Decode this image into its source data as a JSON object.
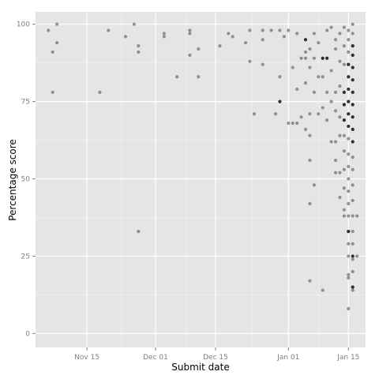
{
  "chart_data": {
    "type": "scatter",
    "xlabel": "Submit date",
    "ylabel": "Percentage score",
    "xlim": [
      "2013-11-03",
      "2014-01-19"
    ],
    "ylim": [
      -4.5,
      104
    ],
    "x_ticks": [
      {
        "value": "2013-11-15",
        "label": "Nov 15"
      },
      {
        "value": "2013-12-01",
        "label": "Dec 01"
      },
      {
        "value": "2013-12-15",
        "label": "Dec 15"
      },
      {
        "value": "2014-01-01",
        "label": "Jan 01"
      },
      {
        "value": "2014-01-15",
        "label": "Jan 15"
      }
    ],
    "y_ticks": [
      0,
      25,
      50,
      75,
      100
    ],
    "grid": true,
    "point_color": "#808080",
    "dark_point_color": "#1a1a1a",
    "panel_background": "#e5e5e5",
    "grid_color": "#ffffff",
    "points": [
      {
        "x": "2013-11-06",
        "y": 98
      },
      {
        "x": "2013-11-07",
        "y": 91
      },
      {
        "x": "2013-11-07",
        "y": 78
      },
      {
        "x": "2013-11-08",
        "y": 100
      },
      {
        "x": "2013-11-08",
        "y": 94
      },
      {
        "x": "2013-11-18",
        "y": 78
      },
      {
        "x": "2013-11-20",
        "y": 98
      },
      {
        "x": "2013-11-24",
        "y": 96
      },
      {
        "x": "2013-11-26",
        "y": 100
      },
      {
        "x": "2013-11-27",
        "y": 93
      },
      {
        "x": "2013-11-27",
        "y": 91
      },
      {
        "x": "2013-11-27",
        "y": 33
      },
      {
        "x": "2013-12-03",
        "y": 97
      },
      {
        "x": "2013-12-03",
        "y": 96
      },
      {
        "x": "2013-12-06",
        "y": 83
      },
      {
        "x": "2013-12-09",
        "y": 98
      },
      {
        "x": "2013-12-09",
        "y": 97
      },
      {
        "x": "2013-12-09",
        "y": 90
      },
      {
        "x": "2013-12-11",
        "y": 92
      },
      {
        "x": "2013-12-11",
        "y": 83
      },
      {
        "x": "2013-12-16",
        "y": 93
      },
      {
        "x": "2013-12-18",
        "y": 97
      },
      {
        "x": "2013-12-19",
        "y": 96
      },
      {
        "x": "2013-12-22",
        "y": 94
      },
      {
        "x": "2013-12-23",
        "y": 98
      },
      {
        "x": "2013-12-23",
        "y": 88
      },
      {
        "x": "2013-12-24",
        "y": 71
      },
      {
        "x": "2013-12-26",
        "y": 98
      },
      {
        "x": "2013-12-26",
        "y": 95
      },
      {
        "x": "2013-12-26",
        "y": 87
      },
      {
        "x": "2013-12-28",
        "y": 98
      },
      {
        "x": "2013-12-29",
        "y": 71
      },
      {
        "x": "2013-12-30",
        "y": 98
      },
      {
        "x": "2013-12-30",
        "y": 83
      },
      {
        "x": "2013-12-30",
        "y": 75,
        "dark": true
      },
      {
        "x": "2013-12-31",
        "y": 96
      },
      {
        "x": "2014-01-01",
        "y": 98
      },
      {
        "x": "2014-01-01",
        "y": 68
      },
      {
        "x": "2014-01-02",
        "y": 86
      },
      {
        "x": "2014-01-02",
        "y": 68
      },
      {
        "x": "2014-01-03",
        "y": 97
      },
      {
        "x": "2014-01-03",
        "y": 79
      },
      {
        "x": "2014-01-03",
        "y": 68
      },
      {
        "x": "2014-01-04",
        "y": 89
      },
      {
        "x": "2014-01-04",
        "y": 70
      },
      {
        "x": "2014-01-05",
        "y": 95,
        "dark": true
      },
      {
        "x": "2014-01-05",
        "y": 91
      },
      {
        "x": "2014-01-05",
        "y": 89
      },
      {
        "x": "2014-01-05",
        "y": 81
      },
      {
        "x": "2014-01-05",
        "y": 66
      },
      {
        "x": "2014-01-06",
        "y": 92
      },
      {
        "x": "2014-01-06",
        "y": 86
      },
      {
        "x": "2014-01-06",
        "y": 71
      },
      {
        "x": "2014-01-06",
        "y": 64
      },
      {
        "x": "2014-01-06",
        "y": 56
      },
      {
        "x": "2014-01-06",
        "y": 42
      },
      {
        "x": "2014-01-06",
        "y": 17
      },
      {
        "x": "2014-01-07",
        "y": 97
      },
      {
        "x": "2014-01-07",
        "y": 89
      },
      {
        "x": "2014-01-07",
        "y": 78
      },
      {
        "x": "2014-01-07",
        "y": 48
      },
      {
        "x": "2014-01-08",
        "y": 94
      },
      {
        "x": "2014-01-08",
        "y": 83
      },
      {
        "x": "2014-01-08",
        "y": 71
      },
      {
        "x": "2014-01-09",
        "y": 89,
        "dark": true
      },
      {
        "x": "2014-01-09",
        "y": 83
      },
      {
        "x": "2014-01-09",
        "y": 73
      },
      {
        "x": "2014-01-09",
        "y": 14
      },
      {
        "x": "2014-01-10",
        "y": 98
      },
      {
        "x": "2014-01-10",
        "y": 89,
        "dark": true
      },
      {
        "x": "2014-01-10",
        "y": 78
      },
      {
        "x": "2014-01-10",
        "y": 69
      },
      {
        "x": "2014-01-11",
        "y": 99
      },
      {
        "x": "2014-01-11",
        "y": 85
      },
      {
        "x": "2014-01-11",
        "y": 75
      },
      {
        "x": "2014-01-11",
        "y": 62
      },
      {
        "x": "2014-01-12",
        "y": 95
      },
      {
        "x": "2014-01-12",
        "y": 92
      },
      {
        "x": "2014-01-12",
        "y": 78
      },
      {
        "x": "2014-01-12",
        "y": 72
      },
      {
        "x": "2014-01-12",
        "y": 62
      },
      {
        "x": "2014-01-12",
        "y": 56
      },
      {
        "x": "2014-01-12",
        "y": 52
      },
      {
        "x": "2014-01-13",
        "y": 97
      },
      {
        "x": "2014-01-13",
        "y": 88
      },
      {
        "x": "2014-01-13",
        "y": 80
      },
      {
        "x": "2014-01-13",
        "y": 70
      },
      {
        "x": "2014-01-13",
        "y": 64
      },
      {
        "x": "2014-01-13",
        "y": 52
      },
      {
        "x": "2014-01-13",
        "y": 44
      },
      {
        "x": "2014-01-14",
        "y": 99
      },
      {
        "x": "2014-01-14",
        "y": 93
      },
      {
        "x": "2014-01-14",
        "y": 87
      },
      {
        "x": "2014-01-14",
        "y": 78,
        "dark": true
      },
      {
        "x": "2014-01-14",
        "y": 74,
        "dark": true
      },
      {
        "x": "2014-01-14",
        "y": 69,
        "dark": true
      },
      {
        "x": "2014-01-14",
        "y": 64
      },
      {
        "x": "2014-01-14",
        "y": 59
      },
      {
        "x": "2014-01-14",
        "y": 53
      },
      {
        "x": "2014-01-14",
        "y": 47
      },
      {
        "x": "2014-01-14",
        "y": 40
      },
      {
        "x": "2014-01-14",
        "y": 38
      },
      {
        "x": "2014-01-15",
        "y": 98
      },
      {
        "x": "2014-01-15",
        "y": 95
      },
      {
        "x": "2014-01-15",
        "y": 91
      },
      {
        "x": "2014-01-15",
        "y": 87,
        "dark": true
      },
      {
        "x": "2014-01-15",
        "y": 83,
        "dark": true
      },
      {
        "x": "2014-01-15",
        "y": 79,
        "dark": true
      },
      {
        "x": "2014-01-15",
        "y": 75,
        "dark": true
      },
      {
        "x": "2014-01-15",
        "y": 71,
        "dark": true
      },
      {
        "x": "2014-01-15",
        "y": 67,
        "dark": true
      },
      {
        "x": "2014-01-15",
        "y": 63
      },
      {
        "x": "2014-01-15",
        "y": 58
      },
      {
        "x": "2014-01-15",
        "y": 54
      },
      {
        "x": "2014-01-15",
        "y": 50
      },
      {
        "x": "2014-01-15",
        "y": 46
      },
      {
        "x": "2014-01-15",
        "y": 42
      },
      {
        "x": "2014-01-15",
        "y": 38
      },
      {
        "x": "2014-01-15",
        "y": 33,
        "dark": true
      },
      {
        "x": "2014-01-15",
        "y": 29
      },
      {
        "x": "2014-01-15",
        "y": 25
      },
      {
        "x": "2014-01-15",
        "y": 19
      },
      {
        "x": "2014-01-15",
        "y": 18
      },
      {
        "x": "2014-01-15",
        "y": 8
      },
      {
        "x": "2014-01-16",
        "y": 100
      },
      {
        "x": "2014-01-16",
        "y": 97
      },
      {
        "x": "2014-01-16",
        "y": 93,
        "dark": true
      },
      {
        "x": "2014-01-16",
        "y": 90,
        "dark": true
      },
      {
        "x": "2014-01-16",
        "y": 86,
        "dark": true
      },
      {
        "x": "2014-01-16",
        "y": 82,
        "dark": true
      },
      {
        "x": "2014-01-16",
        "y": 78,
        "dark": true
      },
      {
        "x": "2014-01-16",
        "y": 74,
        "dark": true
      },
      {
        "x": "2014-01-16",
        "y": 70,
        "dark": true
      },
      {
        "x": "2014-01-16",
        "y": 66,
        "dark": true
      },
      {
        "x": "2014-01-16",
        "y": 62,
        "dark": true
      },
      {
        "x": "2014-01-16",
        "y": 57
      },
      {
        "x": "2014-01-16",
        "y": 53
      },
      {
        "x": "2014-01-16",
        "y": 48
      },
      {
        "x": "2014-01-16",
        "y": 43
      },
      {
        "x": "2014-01-16",
        "y": 38
      },
      {
        "x": "2014-01-16",
        "y": 33
      },
      {
        "x": "2014-01-16",
        "y": 29
      },
      {
        "x": "2014-01-16",
        "y": 25,
        "dark": true
      },
      {
        "x": "2014-01-16",
        "y": 24
      },
      {
        "x": "2014-01-16",
        "y": 20
      },
      {
        "x": "2014-01-16",
        "y": 15,
        "dark": true
      },
      {
        "x": "2014-01-16",
        "y": 14
      },
      {
        "x": "2014-01-17",
        "y": 38
      },
      {
        "x": "2014-01-17",
        "y": 25
      }
    ]
  }
}
